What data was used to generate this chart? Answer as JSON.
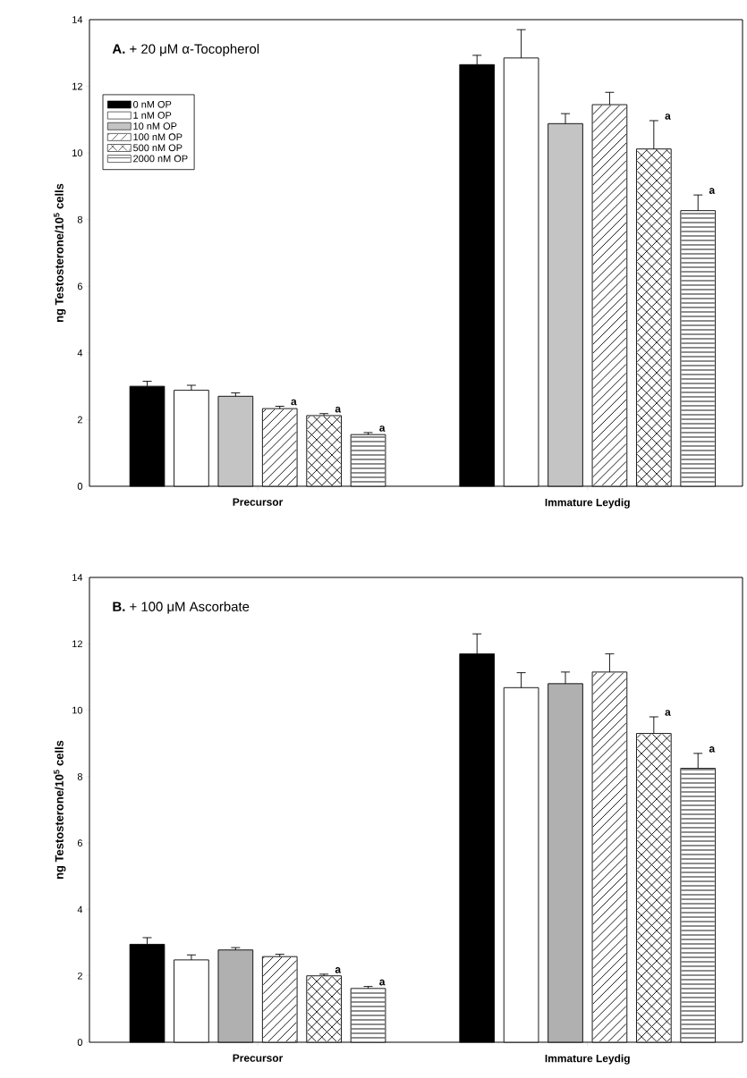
{
  "chart_data": [
    {
      "type": "bar",
      "title": "**A.** + 20 μM α-Tocopherol",
      "ylabel": "ng Testosterone/10$^{5}$ cells",
      "categories": [
        "Precursor",
        "Immature Leydig"
      ],
      "ylim": [
        0,
        14
      ],
      "yticks": [
        0,
        2,
        4,
        6,
        8,
        10,
        12,
        14
      ],
      "legend": "top left",
      "grid": false,
      "series": [
        {
          "name": "0 nM OP",
          "color": "#000000",
          "values": [
            3.0,
            12.65
          ],
          "errors": [
            0.15,
            0.28
          ]
        },
        {
          "name": "1 nM OP",
          "color": "#ffffff",
          "values": [
            2.88,
            12.85
          ],
          "errors": [
            0.15,
            0.85
          ]
        },
        {
          "name": "10 nM OP",
          "color": "#c4c4c4",
          "values": [
            2.7,
            10.88
          ],
          "errors": [
            0.1,
            0.3
          ]
        },
        {
          "name": "100 nM OP",
          "color": "#ffffff",
          "values": [
            2.33,
            11.45
          ],
          "errors": [
            0.07,
            0.37
          ],
          "value_labels": [
            "a",
            null
          ]
        },
        {
          "name": "500 nM OP",
          "color": "#ffffff",
          "values": [
            2.12,
            10.12
          ],
          "errors": [
            0.06,
            0.85
          ],
          "value_labels": [
            "a",
            "a"
          ]
        },
        {
          "name": "2000 nM OP",
          "color": "#ffffff",
          "values": [
            1.55,
            8.27
          ],
          "errors": [
            0.06,
            0.47
          ],
          "value_labels": [
            "a",
            "a"
          ]
        }
      ]
    },
    {
      "type": "bar",
      "title": "**B.** + 100 μM Ascorbate",
      "ylabel": "ng Testosterone/10$^{5}$ cells",
      "categories": [
        "Precursor",
        "Immature Leydig"
      ],
      "ylim": [
        0,
        14
      ],
      "yticks": [
        0,
        2,
        4,
        6,
        8,
        10,
        12,
        14
      ],
      "grid": false,
      "series": [
        {
          "color": "#000000",
          "values": [
            2.95,
            11.7
          ],
          "errors": [
            0.2,
            0.6
          ]
        },
        {
          "color": "#ffffff",
          "values": [
            2.48,
            10.68
          ],
          "errors": [
            0.15,
            0.45
          ]
        },
        {
          "color": "#b0b0b0",
          "values": [
            2.78,
            10.8
          ],
          "errors": [
            0.07,
            0.35
          ]
        },
        {
          "color": "#ffffff",
          "values": [
            2.58,
            11.15
          ],
          "errors": [
            0.07,
            0.55
          ]
        },
        {
          "color": "#ffffff",
          "values": [
            2.0,
            9.3
          ],
          "errors": [
            0.05,
            0.5
          ],
          "value_labels": [
            "a",
            "a"
          ]
        },
        {
          "color": "#ffffff",
          "values": [
            1.62,
            8.25
          ],
          "errors": [
            0.06,
            0.45
          ],
          "value_labels": [
            "a",
            "a"
          ]
        }
      ]
    }
  ]
}
